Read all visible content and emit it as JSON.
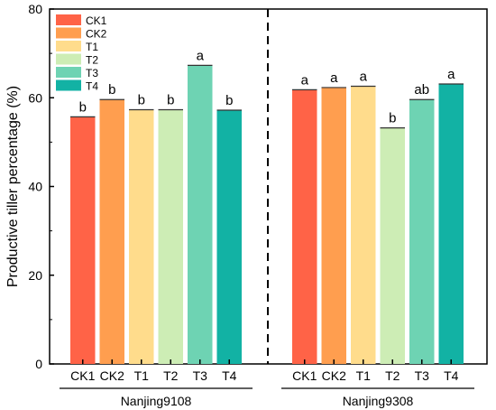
{
  "chart_data": {
    "type": "bar",
    "ylabel": "Productive tiller percentage (%)",
    "xlabel": "",
    "ylim": [
      0,
      80
    ],
    "yticks": [
      0,
      20,
      40,
      60,
      80
    ],
    "grid": false,
    "legend_position": "top-left",
    "series": [
      {
        "name": "CK1",
        "color": "#FF6347"
      },
      {
        "name": "CK2",
        "color": "#FF9E4F"
      },
      {
        "name": "T1",
        "color": "#FFDC8C"
      },
      {
        "name": "T2",
        "color": "#CDEDB5"
      },
      {
        "name": "T3",
        "color": "#6ED3B3"
      },
      {
        "name": "T4",
        "color": "#12B2A4"
      }
    ],
    "groups": [
      {
        "name": "Nanjing9108",
        "tick_labels": [
          "CK1",
          "CK2",
          "T1",
          "T2",
          "T3",
          "T4"
        ],
        "values": [
          55.7,
          59.6,
          57.3,
          57.3,
          67.3,
          57.2
        ],
        "significance": [
          "b",
          "b",
          "b",
          "b",
          "a",
          "b"
        ]
      },
      {
        "name": "Nanjing9308",
        "tick_labels": [
          "CK1",
          "CK2",
          "T1",
          "T2",
          "T3",
          "T4"
        ],
        "values": [
          61.8,
          62.3,
          62.6,
          53.2,
          59.6,
          63.1
        ],
        "significance": [
          "a",
          "a",
          "a",
          "b",
          "ab",
          "a"
        ]
      }
    ]
  }
}
